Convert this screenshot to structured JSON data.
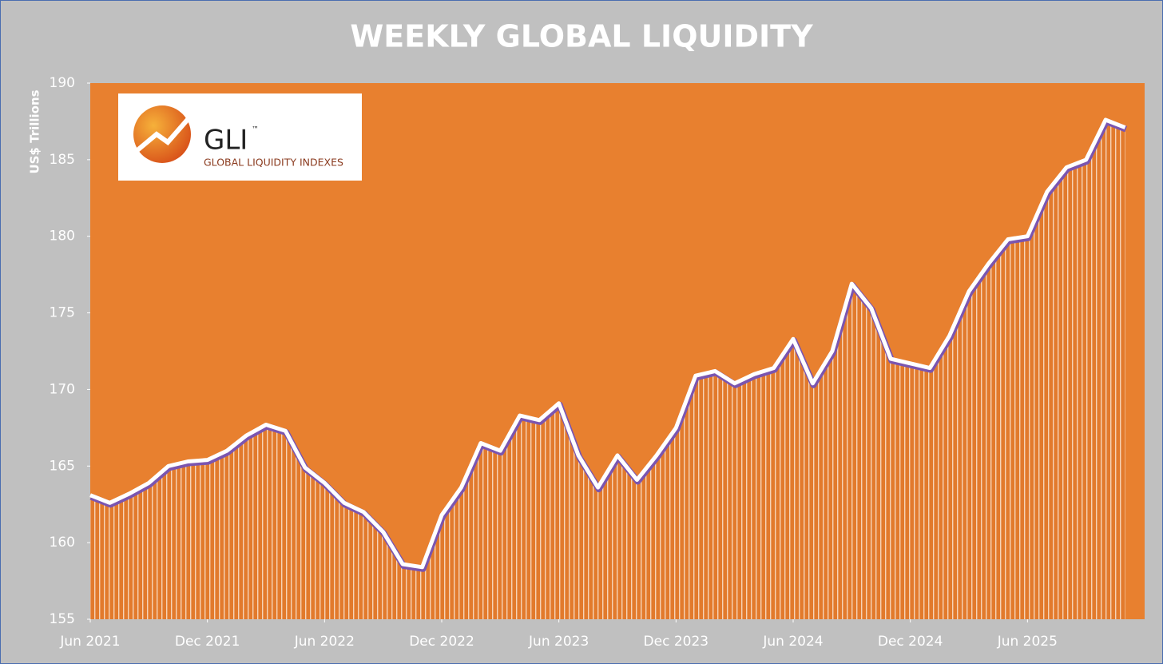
{
  "chart_data": {
    "type": "area",
    "title": "WEEKLY GLOBAL LIQUIDITY",
    "y_label": "US$ Trillions",
    "logo": {
      "mark": "GLI",
      "trademark": "™",
      "text": "GLOBAL LIQUIDITY INDEXES"
    },
    "x": [
      "2021-06",
      "2021-07",
      "2021-08",
      "2021-09",
      "2021-10",
      "2021-11",
      "2021-12",
      "2022-01",
      "2022-02",
      "2022-03",
      "2022-04",
      "2022-05",
      "2022-06",
      "2022-07",
      "2022-08",
      "2022-09",
      "2022-10",
      "2022-11",
      "2022-12",
      "2023-01",
      "2023-02",
      "2023-03",
      "2023-04",
      "2023-05",
      "2023-06",
      "2023-07",
      "2023-08",
      "2023-09",
      "2023-10",
      "2023-11",
      "2023-12",
      "2024-01",
      "2024-02",
      "2024-03",
      "2024-04",
      "2024-05",
      "2024-06",
      "2024-07",
      "2024-08",
      "2024-09",
      "2024-10",
      "2024-11",
      "2024-12",
      "2025-01",
      "2025-02",
      "2025-03",
      "2025-04",
      "2025-05",
      "2025-06",
      "2025-07",
      "2025-08",
      "2025-09",
      "2025-10",
      "2025-11"
    ],
    "values": [
      163.1,
      162.6,
      163.2,
      163.9,
      165.0,
      165.3,
      165.4,
      166.0,
      167.0,
      167.7,
      167.3,
      164.9,
      163.9,
      162.6,
      162.0,
      160.7,
      158.6,
      158.4,
      161.8,
      163.6,
      166.5,
      166.0,
      168.3,
      168.0,
      169.1,
      165.7,
      163.6,
      165.7,
      164.1,
      165.7,
      167.5,
      170.9,
      171.2,
      170.4,
      171.0,
      171.4,
      173.3,
      170.4,
      172.5,
      176.9,
      175.3,
      172.0,
      171.7,
      171.4,
      173.5,
      176.4,
      178.2,
      179.8,
      180.0,
      182.9,
      184.5,
      185.0,
      187.6,
      187.1
    ],
    "color": "#e27a2c",
    "line_color": "#ffffff",
    "background": "#e8802f",
    "xlim": [
      "2021-06",
      "2025-12"
    ],
    "xticks": [
      {
        "value": "2021-06",
        "label": "Jun 2021"
      },
      {
        "value": "2021-12",
        "label": "Dec 2021"
      },
      {
        "value": "2022-06",
        "label": "Jun 2022"
      },
      {
        "value": "2022-12",
        "label": "Dec 2022"
      },
      {
        "value": "2023-06",
        "label": "Jun 2023"
      },
      {
        "value": "2023-12",
        "label": "Dec 2023"
      },
      {
        "value": "2024-06",
        "label": "Jun 2024"
      },
      {
        "value": "2024-12",
        "label": "Dec 2024"
      },
      {
        "value": "2025-06",
        "label": "Jun 2025"
      }
    ],
    "ylim": [
      155,
      190
    ],
    "yticks": [
      155,
      160,
      165,
      170,
      175,
      180,
      185,
      190
    ]
  }
}
